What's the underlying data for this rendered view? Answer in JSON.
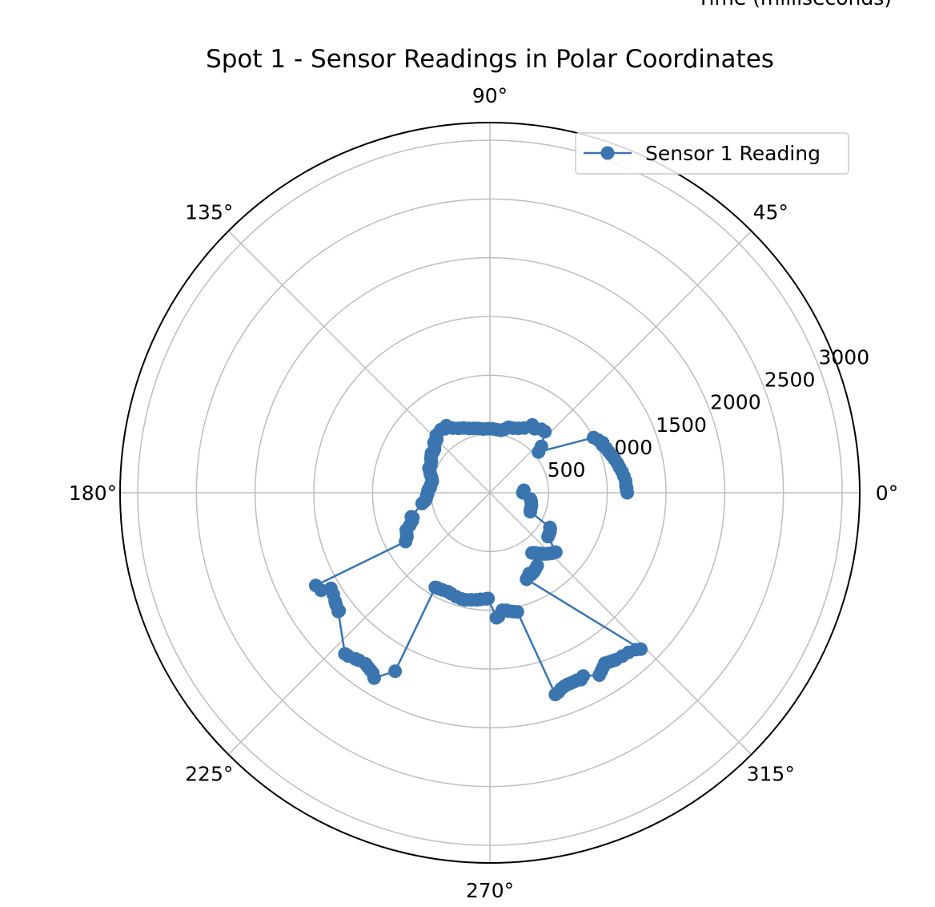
{
  "chart_data": {
    "type": "scatter",
    "subtype": "polar-line-markers",
    "title": "Spot 1 - Sensor Readings in Polar Coordinates",
    "top_label": "Time (milliseconds)",
    "angle_unit": "degrees",
    "angle_ticks": [
      "0°",
      "45°",
      "90°",
      "135°",
      "180°",
      "225°",
      "270°",
      "315°"
    ],
    "radial_ticks": [
      "500",
      "1000",
      "1500",
      "2000",
      "2500",
      "3000"
    ],
    "radial_tick_values": [
      500,
      1000,
      1500,
      2000,
      2500,
      3000
    ],
    "rlim": [
      0,
      3150
    ],
    "grid": true,
    "legend": {
      "placement": "top-right",
      "entries": [
        "Sensor 1 Reading"
      ]
    },
    "series": [
      {
        "name": "Sensor 1 Reading",
        "color": "#3a75b0",
        "points": [
          {
            "angle": 0,
            "r": 280
          },
          {
            "angle": 2,
            "r": 285
          },
          {
            "angle": 4,
            "r": 290
          },
          {
            "angle": 351,
            "r": 350
          },
          {
            "angle": 348,
            "r": 360
          },
          {
            "angle": 343,
            "r": 370
          },
          {
            "angle": 340,
            "r": 372
          },
          {
            "angle": 337,
            "r": 375
          },
          {
            "angle": 335,
            "r": 380
          },
          {
            "angle": 330,
            "r": 590
          },
          {
            "angle": 329,
            "r": 600
          },
          {
            "angle": 327,
            "r": 610
          },
          {
            "angle": 325,
            "r": 615
          },
          {
            "angle": 323,
            "r": 620
          },
          {
            "angle": 318,
            "r": 755
          },
          {
            "angle": 317,
            "r": 745
          },
          {
            "angle": 316,
            "r": 740
          },
          {
            "angle": 315,
            "r": 730
          },
          {
            "angle": 314,
            "r": 720
          },
          {
            "angle": 313,
            "r": 710
          },
          {
            "angle": 312,
            "r": 700
          },
          {
            "angle": 311,
            "r": 690
          },
          {
            "angle": 310,
            "r": 675
          },
          {
            "angle": 309,
            "r": 665
          },
          {
            "angle": 308,
            "r": 655
          },
          {
            "angle": 307,
            "r": 640
          },
          {
            "angle": 306,
            "r": 632
          },
          {
            "angle": 305,
            "r": 625
          },
          {
            "angle": 303,
            "r": 740
          },
          {
            "angle": 301,
            "r": 755
          },
          {
            "angle": 299,
            "r": 770
          },
          {
            "angle": 297,
            "r": 780
          },
          {
            "angle": 296,
            "r": 765
          },
          {
            "angle": 295,
            "r": 780
          },
          {
            "angle": 294,
            "r": 790
          },
          {
            "angle": 293,
            "r": 800
          },
          {
            "angle": 314,
            "r": 1850
          },
          {
            "angle": 313,
            "r": 1825
          },
          {
            "angle": 311,
            "r": 1800
          },
          {
            "angle": 309,
            "r": 1790
          },
          {
            "angle": 307,
            "r": 1780
          },
          {
            "angle": 306,
            "r": 1770
          },
          {
            "angle": 305,
            "r": 1760
          },
          {
            "angle": 304,
            "r": 1750
          },
          {
            "angle": 303,
            "r": 1770
          },
          {
            "angle": 302,
            "r": 1790
          },
          {
            "angle": 301,
            "r": 1810
          },
          {
            "angle": 297,
            "r": 1750
          },
          {
            "angle": 296,
            "r": 1770
          },
          {
            "angle": 295,
            "r": 1760
          },
          {
            "angle": 294,
            "r": 1760
          },
          {
            "angle": 293,
            "r": 1760
          },
          {
            "angle": 292,
            "r": 1760
          },
          {
            "angle": 291,
            "r": 1765
          },
          {
            "angle": 290,
            "r": 1775
          },
          {
            "angle": 289,
            "r": 1795
          },
          {
            "angle": 288,
            "r": 1805
          },
          {
            "angle": 283,
            "r": 1040
          },
          {
            "angle": 281,
            "r": 1030
          },
          {
            "angle": 279,
            "r": 1020
          },
          {
            "angle": 278,
            "r": 1010
          },
          {
            "angle": 276,
            "r": 1005
          },
          {
            "angle": 274,
            "r": 1055
          },
          {
            "angle": 273,
            "r": 1065
          },
          {
            "angle": 269,
            "r": 900
          },
          {
            "angle": 268,
            "r": 903
          },
          {
            "angle": 265,
            "r": 910
          },
          {
            "angle": 263,
            "r": 918
          },
          {
            "angle": 260,
            "r": 925
          },
          {
            "angle": 257,
            "r": 935
          },
          {
            "angle": 255,
            "r": 935
          },
          {
            "angle": 252,
            "r": 930
          },
          {
            "angle": 249,
            "r": 920
          },
          {
            "angle": 247,
            "r": 915
          },
          {
            "angle": 244,
            "r": 920
          },
          {
            "angle": 242,
            "r": 925
          },
          {
            "angle": 241,
            "r": 925
          },
          {
            "angle": 240,
            "r": 930
          },
          {
            "angle": 242,
            "r": 1720
          },
          {
            "angle": 238,
            "r": 1860
          },
          {
            "angle": 237,
            "r": 1830
          },
          {
            "angle": 236,
            "r": 1820
          },
          {
            "angle": 235,
            "r": 1810
          },
          {
            "angle": 234,
            "r": 1800
          },
          {
            "angle": 232,
            "r": 1810
          },
          {
            "angle": 231,
            "r": 1820
          },
          {
            "angle": 229,
            "r": 1840
          },
          {
            "angle": 228,
            "r": 1845
          },
          {
            "angle": 218,
            "r": 1640
          },
          {
            "angle": 218,
            "r": 1630
          },
          {
            "angle": 216,
            "r": 1620
          },
          {
            "angle": 215,
            "r": 1610
          },
          {
            "angle": 213,
            "r": 1590
          },
          {
            "angle": 211,
            "r": 1580
          },
          {
            "angle": 210,
            "r": 1660
          },
          {
            "angle": 208,
            "r": 1680
          },
          {
            "angle": 210,
            "r": 830
          },
          {
            "angle": 208,
            "r": 800
          },
          {
            "angle": 206,
            "r": 790
          },
          {
            "angle": 204,
            "r": 780
          },
          {
            "angle": 202,
            "r": 735
          },
          {
            "angle": 200,
            "r": 705
          },
          {
            "angle": 198,
            "r": 690
          },
          {
            "angle": 197,
            "r": 700
          },
          {
            "angle": 189,
            "r": 585
          },
          {
            "angle": 187,
            "r": 555
          },
          {
            "angle": 185,
            "r": 545
          },
          {
            "angle": 183,
            "r": 540
          },
          {
            "angle": 181,
            "r": 530
          },
          {
            "angle": 179,
            "r": 530
          },
          {
            "angle": 177,
            "r": 525
          },
          {
            "angle": 175,
            "r": 510
          },
          {
            "angle": 173,
            "r": 510
          },
          {
            "angle": 171,
            "r": 505
          },
          {
            "angle": 169,
            "r": 500
          },
          {
            "angle": 167,
            "r": 505
          },
          {
            "angle": 165,
            "r": 515
          },
          {
            "angle": 163,
            "r": 530
          },
          {
            "angle": 160,
            "r": 545
          },
          {
            "angle": 158,
            "r": 560
          },
          {
            "angle": 155,
            "r": 555
          },
          {
            "angle": 152,
            "r": 565
          },
          {
            "angle": 150,
            "r": 580
          },
          {
            "angle": 148,
            "r": 590
          },
          {
            "angle": 146,
            "r": 600
          },
          {
            "angle": 144,
            "r": 595
          },
          {
            "angle": 142,
            "r": 600
          },
          {
            "angle": 140,
            "r": 615
          },
          {
            "angle": 138,
            "r": 640
          },
          {
            "angle": 135,
            "r": 640
          },
          {
            "angle": 133,
            "r": 670
          },
          {
            "angle": 128,
            "r": 680
          },
          {
            "angle": 125,
            "r": 665
          },
          {
            "angle": 123,
            "r": 680
          },
          {
            "angle": 120,
            "r": 635
          },
          {
            "angle": 116,
            "r": 610
          },
          {
            "angle": 112,
            "r": 595
          },
          {
            "angle": 108,
            "r": 575
          },
          {
            "angle": 104,
            "r": 565
          },
          {
            "angle": 100,
            "r": 555
          },
          {
            "angle": 96,
            "r": 545
          },
          {
            "angle": 92,
            "r": 545
          },
          {
            "angle": 88,
            "r": 545
          },
          {
            "angle": 84,
            "r": 540
          },
          {
            "angle": 80,
            "r": 540
          },
          {
            "angle": 77,
            "r": 555
          },
          {
            "angle": 74,
            "r": 580
          },
          {
            "angle": 70,
            "r": 585
          },
          {
            "angle": 66,
            "r": 600
          },
          {
            "angle": 62,
            "r": 625
          },
          {
            "angle": 58,
            "r": 680
          },
          {
            "angle": 55,
            "r": 665
          },
          {
            "angle": 51,
            "r": 695
          },
          {
            "angle": 48,
            "r": 700
          },
          {
            "angle": 42,
            "r": 590
          },
          {
            "angle": 40,
            "r": 540
          },
          {
            "angle": 28,
            "r": 1000
          },
          {
            "angle": 26,
            "r": 1025
          },
          {
            "angle": 24,
            "r": 1050
          },
          {
            "angle": 23,
            "r": 1040
          },
          {
            "angle": 21,
            "r": 1060
          },
          {
            "angle": 19,
            "r": 1070
          },
          {
            "angle": 17,
            "r": 1085
          },
          {
            "angle": 15,
            "r": 1100
          },
          {
            "angle": 13,
            "r": 1115
          },
          {
            "angle": 11,
            "r": 1125
          },
          {
            "angle": 9,
            "r": 1140
          },
          {
            "angle": 7,
            "r": 1150
          },
          {
            "angle": 5,
            "r": 1160
          },
          {
            "angle": 3,
            "r": 1160
          },
          {
            "angle": 2,
            "r": 1165
          },
          {
            "angle": 1,
            "r": 1165
          },
          {
            "angle": 0,
            "r": 1170
          }
        ]
      }
    ]
  }
}
